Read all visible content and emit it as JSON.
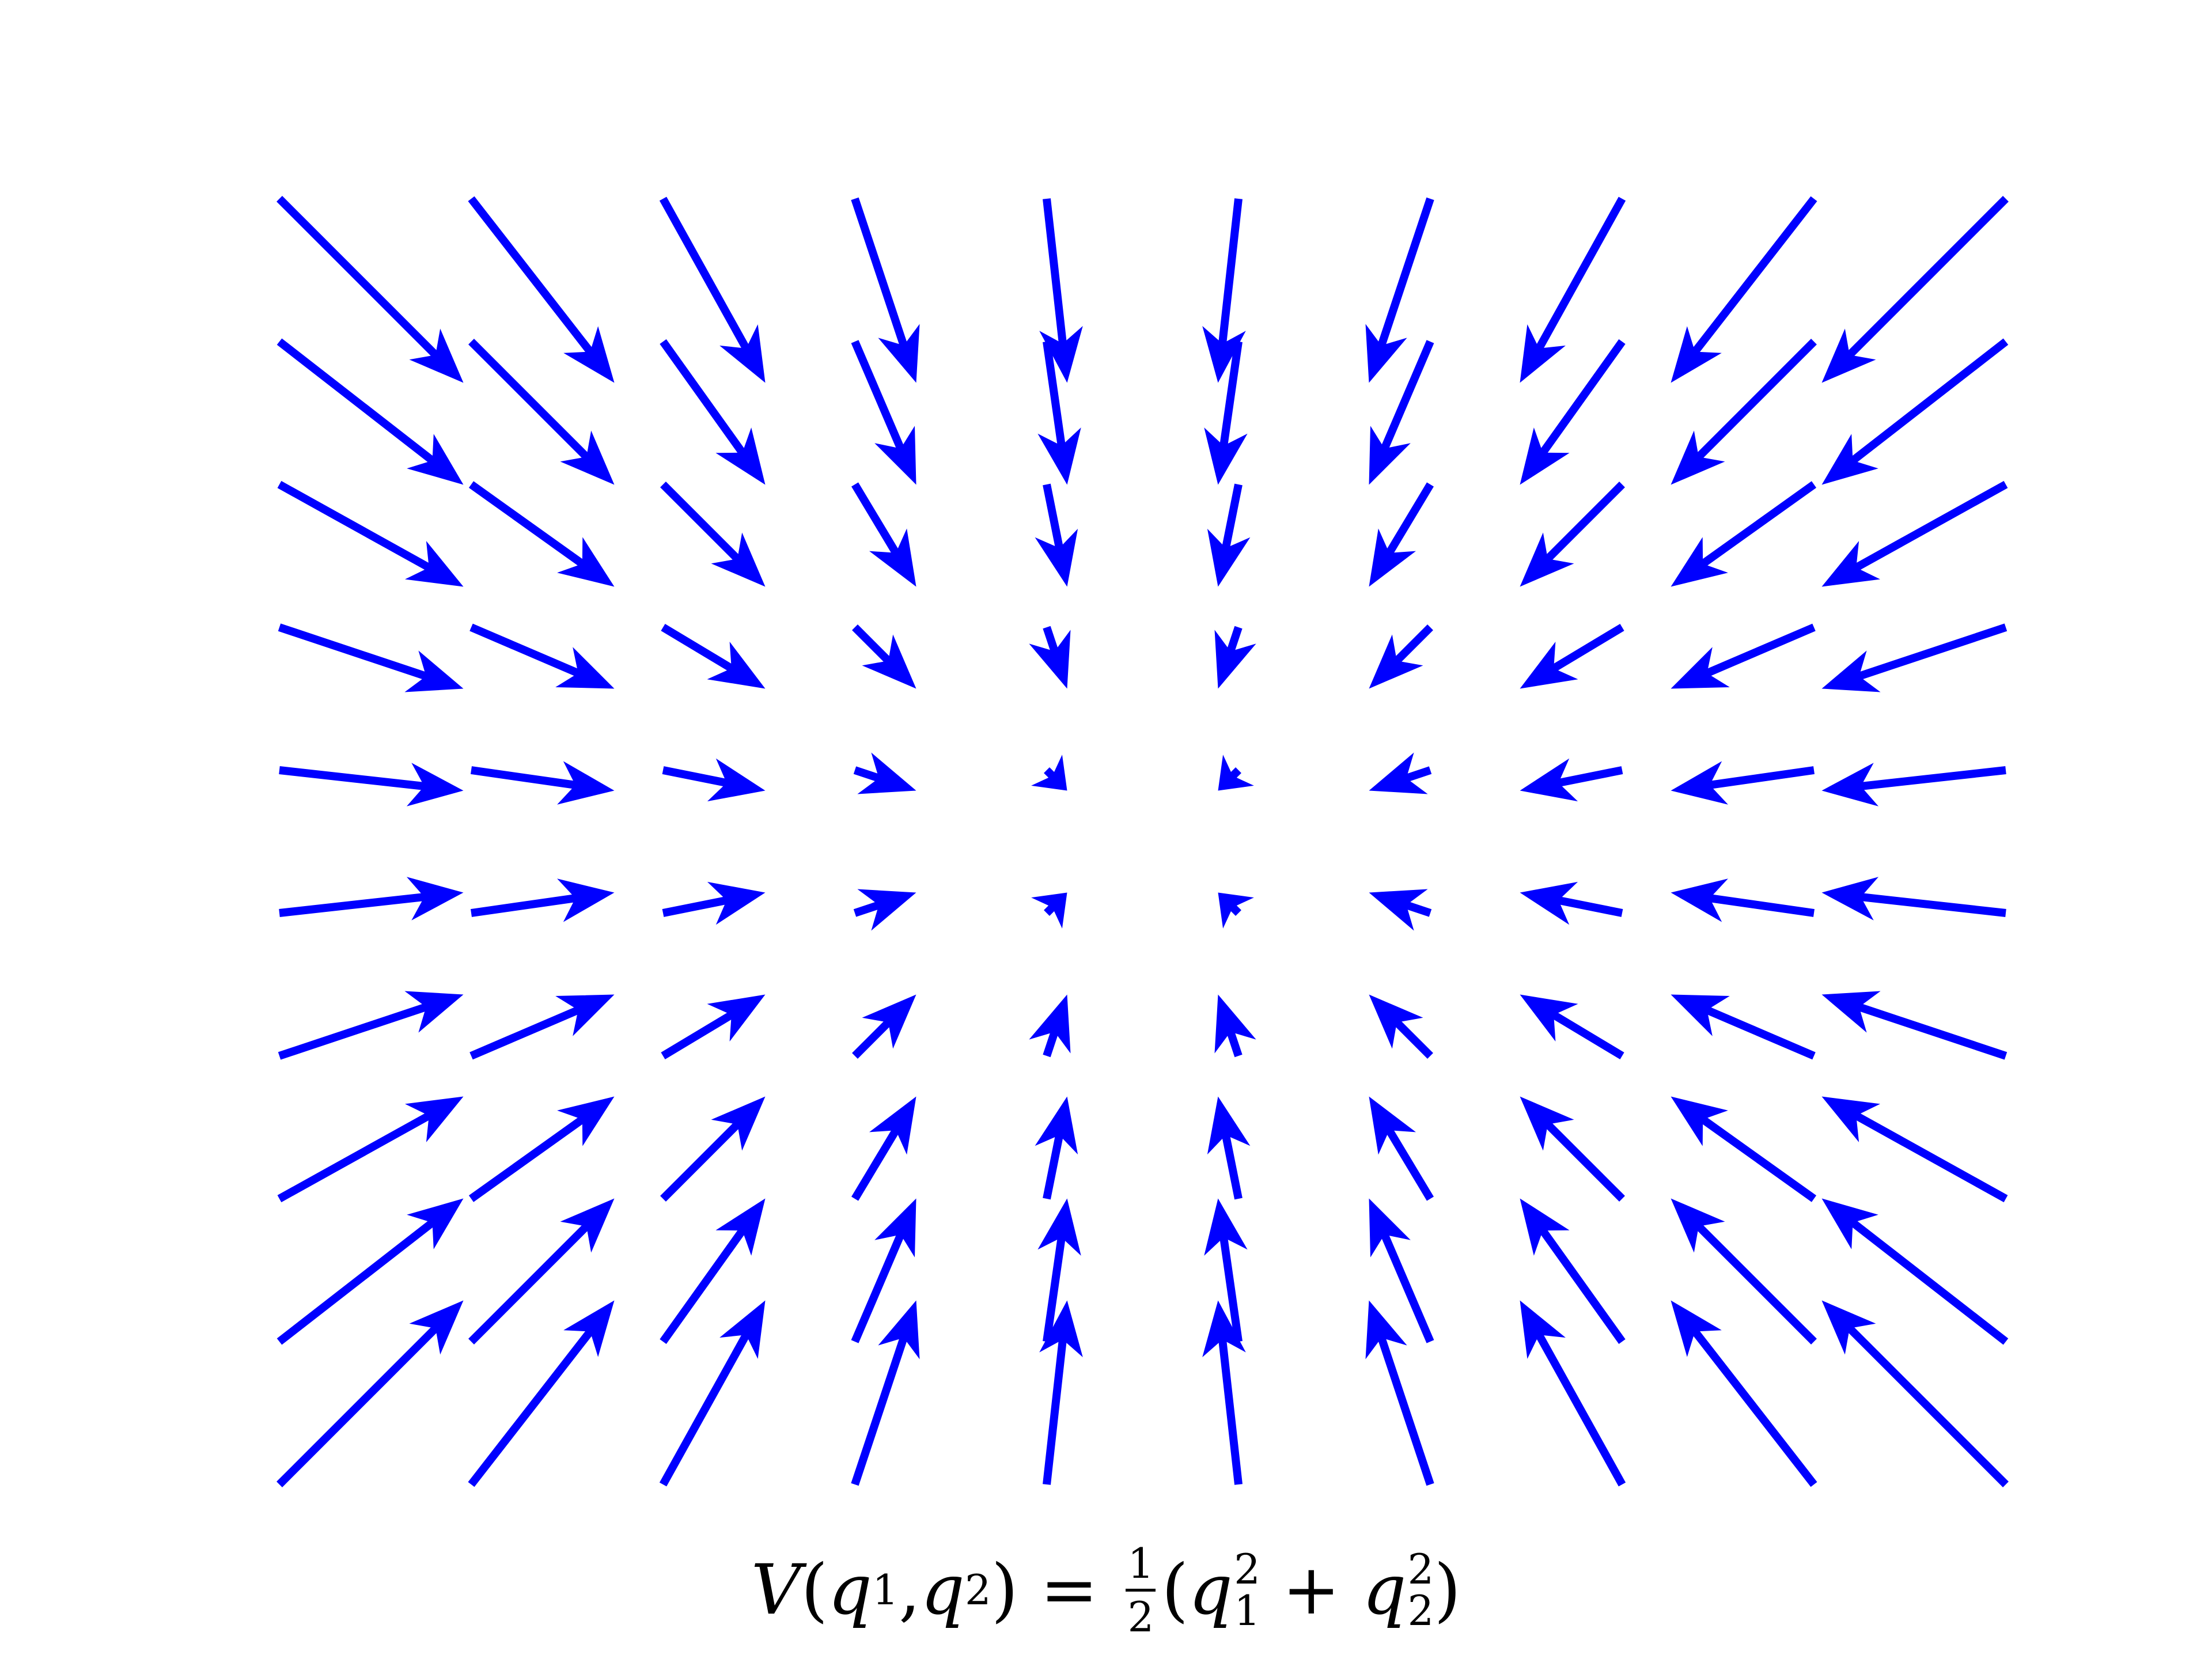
{
  "chart_data": {
    "type": "quiver",
    "title": "",
    "xlabel": "",
    "ylabel": "",
    "grid": false,
    "axes_visible": false,
    "arrow_color": "#0000ff",
    "x": [
      -5,
      -4,
      -3,
      -2,
      -1,
      0,
      1,
      2,
      3,
      4
    ],
    "y": [
      5,
      4,
      3,
      2,
      1,
      0,
      -1,
      -2,
      -3,
      -4
    ],
    "vector_field": "(-(x+0.5), -(y-0.5))",
    "caption": {
      "lhs_fn": "V",
      "lhs_open": "(",
      "var1": "q",
      "sub1": "1",
      "comma": ", ",
      "var2": "q",
      "sub2": "2",
      "lhs_close": ")",
      "equals": " = ",
      "frac_num": "1",
      "frac_den": "2",
      "open": "(",
      "t1_var": "q",
      "t1_sup": "2",
      "t1_sub": "1",
      "plus": " + ",
      "t2_var": "q",
      "t2_sup": "2",
      "t2_sub": "2",
      "close": ")"
    }
  }
}
